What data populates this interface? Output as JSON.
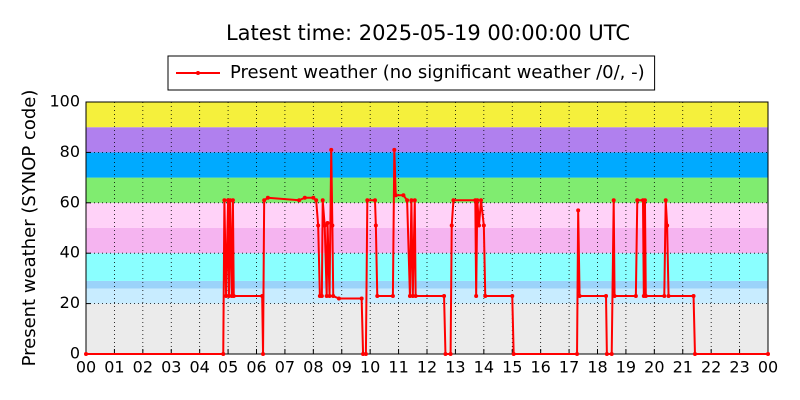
{
  "chart_data": {
    "type": "line",
    "title": "Latest time: 2025-05-19 00:00:00 UTC",
    "ylabel": "Present weather (SYNOP code)",
    "xlim": [
      0,
      24
    ],
    "xticks": [
      {
        "value": 0,
        "label": "00"
      },
      {
        "value": 1,
        "label": "01"
      },
      {
        "value": 2,
        "label": "02"
      },
      {
        "value": 3,
        "label": "03"
      },
      {
        "value": 4,
        "label": "04"
      },
      {
        "value": 5,
        "label": "05"
      },
      {
        "value": 6,
        "label": "06"
      },
      {
        "value": 7,
        "label": "07"
      },
      {
        "value": 8,
        "label": "08"
      },
      {
        "value": 9,
        "label": "09"
      },
      {
        "value": 10,
        "label": "10"
      },
      {
        "value": 11,
        "label": "11"
      },
      {
        "value": 12,
        "label": "12"
      },
      {
        "value": 13,
        "label": "13"
      },
      {
        "value": 14,
        "label": "14"
      },
      {
        "value": 15,
        "label": "15"
      },
      {
        "value": 16,
        "label": "16"
      },
      {
        "value": 17,
        "label": "17"
      },
      {
        "value": 18,
        "label": "18"
      },
      {
        "value": 19,
        "label": "19"
      },
      {
        "value": 20,
        "label": "20"
      },
      {
        "value": 21,
        "label": "21"
      },
      {
        "value": 22,
        "label": "22"
      },
      {
        "value": 23,
        "label": "23"
      },
      {
        "value": 24,
        "label": "00"
      }
    ],
    "ylim": [
      0,
      100
    ],
    "yticks": [
      0,
      20,
      40,
      60,
      80,
      100
    ],
    "grid": true,
    "legend": "top",
    "bands": [
      {
        "from": 0,
        "to": 20,
        "color": "#ebebeb"
      },
      {
        "from": 20,
        "to": 26,
        "color": "#c8ecff"
      },
      {
        "from": 26,
        "to": 29,
        "color": "#9bd3fa"
      },
      {
        "from": 29,
        "to": 40,
        "color": "#8affff"
      },
      {
        "from": 40,
        "to": 50,
        "color": "#f5b4f0"
      },
      {
        "from": 50,
        "to": 60,
        "color": "#ffd2f8"
      },
      {
        "from": 60,
        "to": 70,
        "color": "#80ec70"
      },
      {
        "from": 70,
        "to": 80,
        "color": "#00aaff"
      },
      {
        "from": 80,
        "to": 90,
        "color": "#b080ee"
      },
      {
        "from": 90,
        "to": 100,
        "color": "#f5f03c"
      }
    ],
    "series": [
      {
        "name": "Present weather (no significant weather /0/, -)",
        "color": "#ff0000",
        "x": [
          0,
          4.83,
          4.87,
          4.93,
          5.0,
          5.03,
          5.07,
          5.13,
          5.17,
          5.2,
          6.2,
          6.23,
          6.27,
          6.4,
          7.5,
          7.7,
          8.0,
          8.1,
          8.17,
          8.23,
          8.3,
          8.33,
          8.4,
          8.47,
          8.5,
          8.57,
          8.63,
          8.67,
          8.7,
          8.9,
          9.7,
          9.75,
          9.85,
          9.9,
          10.17,
          10.2,
          10.25,
          10.8,
          10.85,
          10.9,
          11.17,
          11.3,
          11.4,
          11.45,
          11.5,
          11.57,
          11.6,
          12.6,
          12.65,
          12.83,
          12.87,
          12.93,
          13.7,
          13.73,
          13.77,
          13.83,
          13.9,
          14.0,
          14.05,
          15.0,
          15.05,
          17.28,
          17.32,
          17.37,
          18.3,
          18.33,
          18.5,
          18.57,
          18.6,
          19.35,
          19.4,
          19.6,
          19.63,
          19.67,
          19.7,
          20.35,
          20.4,
          20.45,
          20.5,
          21.38,
          21.43,
          24
        ],
        "values": [
          0,
          0,
          61,
          23,
          61,
          23,
          61,
          23,
          61,
          23,
          23,
          0,
          61,
          62,
          61,
          62,
          62,
          61,
          51,
          23,
          23,
          61,
          51,
          23,
          52,
          23,
          81,
          51,
          23,
          22,
          22,
          0,
          0,
          61,
          61,
          51,
          23,
          23,
          81,
          63,
          63,
          61,
          23,
          61,
          23,
          61,
          23,
          23,
          0,
          0,
          51,
          61,
          61,
          23,
          61,
          51,
          61,
          51,
          23,
          23,
          0,
          0,
          57,
          23,
          23,
          0,
          0,
          61,
          23,
          23,
          61,
          61,
          23,
          61,
          23,
          23,
          61,
          51,
          23,
          23,
          0,
          0
        ]
      }
    ]
  }
}
